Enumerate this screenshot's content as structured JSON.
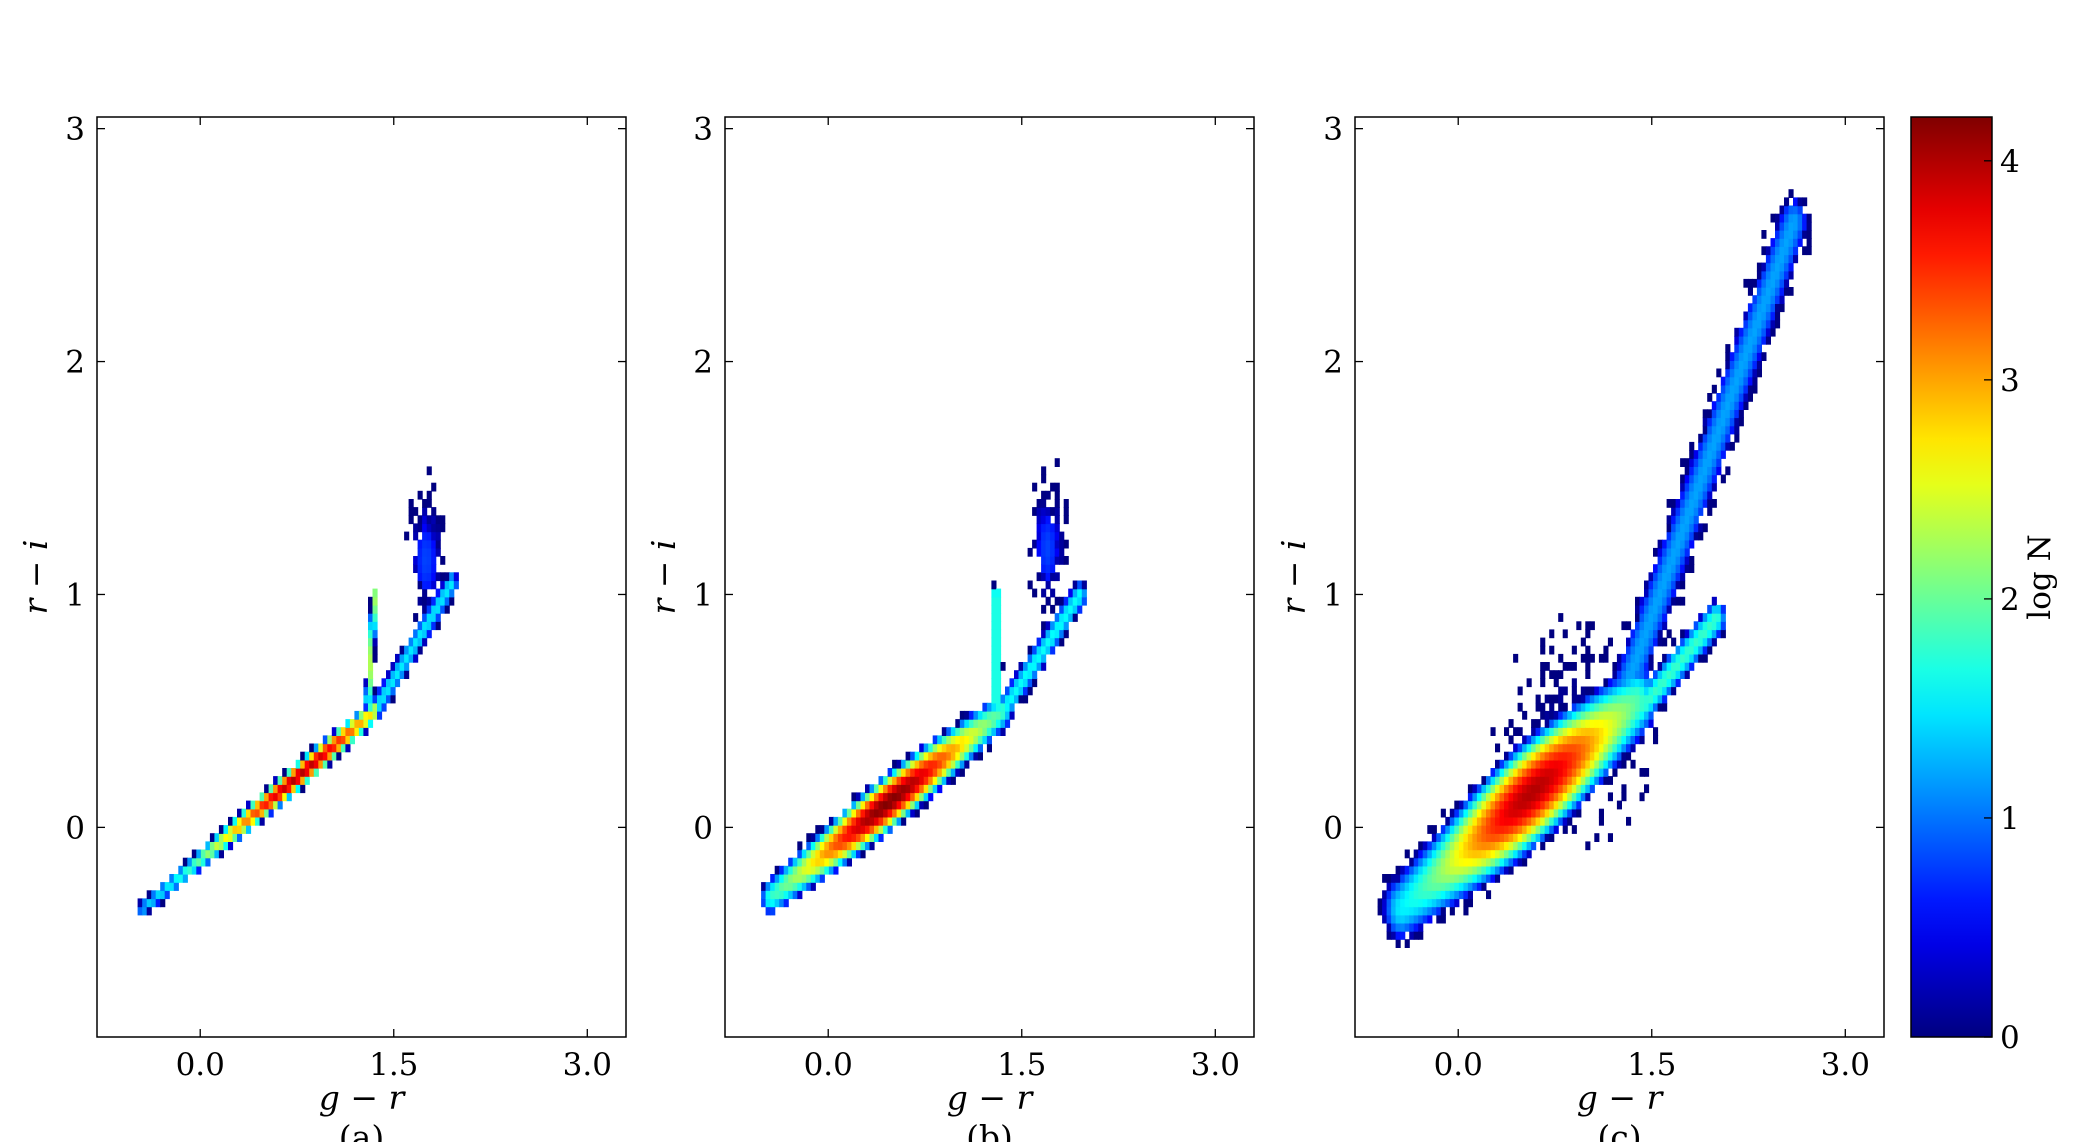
{
  "chart_data": [
    {
      "type": "heatmap",
      "panel_label": "(a)",
      "xlabel": "g − r",
      "ylabel": "r − i",
      "xlim": [
        -0.8,
        3.3
      ],
      "ylim": [
        -0.9,
        3.05
      ],
      "xticks": [
        0.0,
        1.5,
        3.0
      ],
      "xtick_labels": [
        "0.0",
        "1.5",
        "3.0"
      ],
      "yticks": [
        0,
        1,
        2,
        3
      ],
      "ytick_labels": [
        "0",
        "1",
        "2",
        "3"
      ],
      "density_features": [
        {
          "name": "main-locus",
          "from": [
            -0.45,
            -0.35
          ],
          "to": [
            1.35,
            0.5
          ],
          "width": 0.05,
          "peak_at": [
            0.75,
            0.28
          ],
          "peak_log_n": 4.0
        },
        {
          "name": "vertical-branch",
          "from": [
            1.3,
            0.55
          ],
          "to": [
            1.35,
            1.0
          ],
          "width": 0.03,
          "peak_log_n": 2.3
        },
        {
          "name": "red-branch",
          "from": [
            1.35,
            0.5
          ],
          "to": [
            1.95,
            1.05
          ],
          "width": 0.07,
          "peak_log_n": 1.5
        },
        {
          "name": "upper-plume",
          "center": [
            1.75,
            1.15
          ],
          "spread": [
            0.15,
            0.3
          ],
          "peak_log_n": 0.8
        }
      ]
    },
    {
      "type": "heatmap",
      "panel_label": "(b)",
      "xlabel": "g − r",
      "ylabel": "r − i",
      "xlim": [
        -0.8,
        3.3
      ],
      "ylim": [
        -0.9,
        3.05
      ],
      "xticks": [
        0.0,
        1.5,
        3.0
      ],
      "xtick_labels": [
        "0.0",
        "1.5",
        "3.0"
      ],
      "yticks": [
        0,
        1,
        2,
        3
      ],
      "ytick_labels": [
        "0",
        "1",
        "2",
        "3"
      ],
      "density_features": [
        {
          "name": "main-locus",
          "from": [
            -0.45,
            -0.3
          ],
          "to": [
            1.35,
            0.5
          ],
          "width": 0.1,
          "peak_at": [
            0.45,
            0.15
          ],
          "peak_log_n": 4.2
        },
        {
          "name": "vertical-branch",
          "from": [
            1.3,
            0.55
          ],
          "to": [
            1.3,
            1.0
          ],
          "width": 0.05,
          "peak_log_n": 2.0
        },
        {
          "name": "red-branch",
          "from": [
            1.35,
            0.5
          ],
          "to": [
            1.95,
            1.0
          ],
          "width": 0.08,
          "peak_log_n": 1.6
        },
        {
          "name": "upper-plume",
          "center": [
            1.7,
            1.2
          ],
          "spread": [
            0.15,
            0.3
          ],
          "peak_log_n": 0.8
        }
      ]
    },
    {
      "type": "heatmap",
      "panel_label": "(c)",
      "xlabel": "g − r",
      "ylabel": "r − i",
      "xlim": [
        -0.8,
        3.3
      ],
      "ylim": [
        -0.9,
        3.05
      ],
      "xticks": [
        0.0,
        1.5,
        3.0
      ],
      "xtick_labels": [
        "0.0",
        "1.5",
        "3.0"
      ],
      "yticks": [
        0,
        1,
        2,
        3
      ],
      "ytick_labels": [
        "0",
        "1",
        "2",
        "3"
      ],
      "density_features": [
        {
          "name": "main-locus",
          "from": [
            -0.45,
            -0.35
          ],
          "to": [
            1.4,
            0.55
          ],
          "width": 0.2,
          "peak_at": [
            0.55,
            0.2
          ],
          "peak_log_n": 4.0
        },
        {
          "name": "upper-branch",
          "from": [
            1.3,
            0.6
          ],
          "to": [
            2.6,
            2.6
          ],
          "width": 0.18,
          "peak_log_n": 1.2
        },
        {
          "name": "lower-branch",
          "from": [
            1.4,
            0.5
          ],
          "to": [
            2.0,
            0.9
          ],
          "width": 0.1,
          "peak_log_n": 1.8
        },
        {
          "name": "scatter-halo",
          "center": [
            0.9,
            0.4
          ],
          "spread": [
            0.6,
            0.5
          ],
          "peak_log_n": 0.3
        }
      ]
    }
  ],
  "colorbar": {
    "label": "log N",
    "range": [
      0,
      4.2
    ],
    "ticks": [
      0,
      1,
      2,
      3,
      4
    ],
    "tick_labels": [
      "0",
      "1",
      "2",
      "3",
      "4"
    ],
    "colormap": "jet",
    "colors": [
      "#000080",
      "#0000ff",
      "#00ffff",
      "#ffff00",
      "#ff0000",
      "#800000"
    ]
  }
}
